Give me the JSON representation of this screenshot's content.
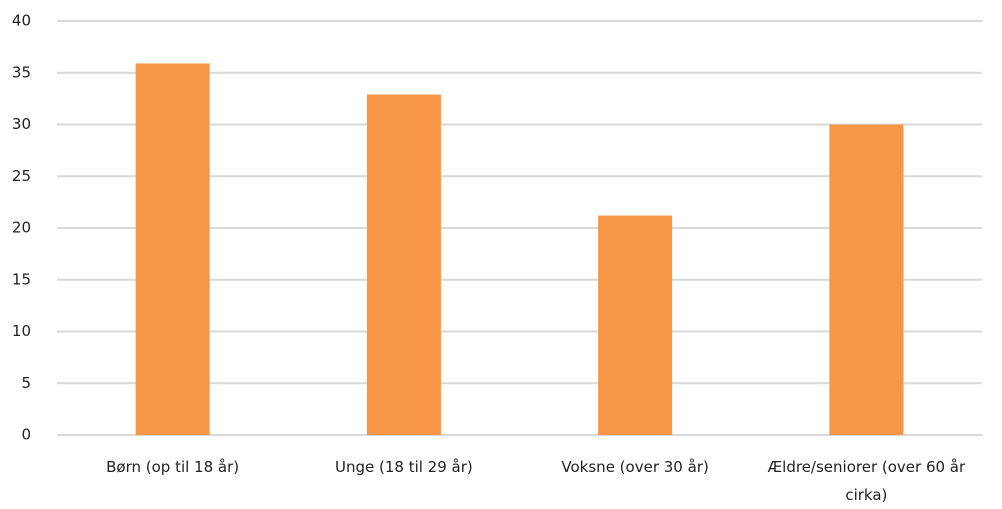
{
  "chart_data": {
    "type": "bar",
    "categories": [
      "Børn (op til 18 år)",
      "Unge (18 til 29 år)",
      "Voksne (over 30 år)",
      "Ældre/seniorer (over 60 år cirka)"
    ],
    "values": [
      35.9,
      32.9,
      21.2,
      30
    ],
    "color": "#f79646",
    "ylim": [
      0,
      40
    ],
    "yticks": [
      0,
      5,
      10,
      15,
      20,
      25,
      30,
      35,
      40
    ],
    "grid": true
  }
}
